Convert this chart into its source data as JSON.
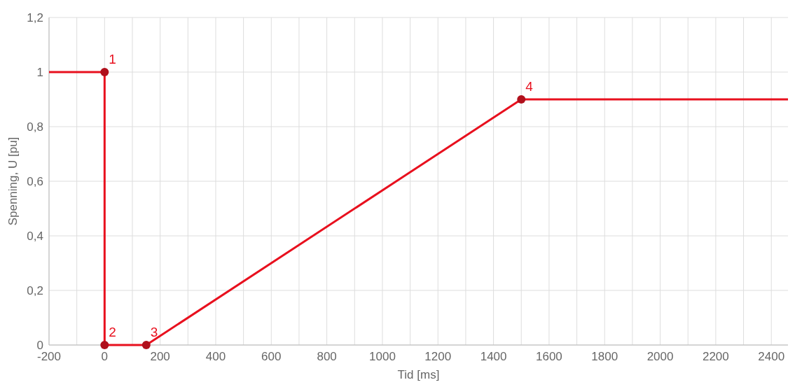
{
  "chart_data": {
    "type": "line",
    "xlabel": "Tid [ms]",
    "ylabel": "Spenning, U [pu]",
    "xlim": [
      -200,
      2460
    ],
    "ylim": [
      0,
      1.2
    ],
    "xticks": [
      -200,
      {
        "value": -100,
        "label": null
      },
      0,
      {
        "value": 100,
        "label": null
      },
      200,
      {
        "value": 300,
        "label": null
      },
      400,
      {
        "value": 500,
        "label": null
      },
      600,
      {
        "value": 700,
        "label": null
      },
      800,
      {
        "value": 900,
        "label": null
      },
      1000,
      {
        "value": 1100,
        "label": null
      },
      1200,
      {
        "value": 1300,
        "label": null
      },
      1400,
      {
        "value": 1500,
        "label": null
      },
      1600,
      {
        "value": 1700,
        "label": null
      },
      1800,
      {
        "value": 1900,
        "label": null
      },
      2000,
      {
        "value": 2100,
        "label": null
      },
      2200,
      {
        "value": 2300,
        "label": null
      },
      2400
    ],
    "yticks": [
      0,
      {
        "value": 0.2,
        "label": "0,2"
      },
      {
        "value": 0.4,
        "label": "0,4"
      },
      {
        "value": 0.6,
        "label": "0,6"
      },
      {
        "value": 0.8,
        "label": "0,8"
      },
      1,
      {
        "value": 1.2,
        "label": "1,2"
      }
    ],
    "grid": true,
    "series": [
      {
        "color": "#e8101e",
        "x": [
          -200,
          0,
          0,
          150,
          1500,
          2460
        ],
        "values": [
          1,
          1,
          0,
          0,
          0.9,
          0.9
        ],
        "marker": "none"
      },
      {
        "type": "scatter",
        "color": "#b0101c",
        "x": [
          0,
          0,
          150,
          1500
        ],
        "values": [
          1,
          0,
          0,
          0.9
        ],
        "marker": "circle"
      }
    ],
    "annotations": [
      {
        "text": "1",
        "x": 0,
        "y": 1
      },
      {
        "text": "2",
        "x": 0,
        "y": 0
      },
      {
        "text": "3",
        "x": 150,
        "y": 0
      },
      {
        "text": "4",
        "x": 1500,
        "y": 0.9
      }
    ]
  }
}
